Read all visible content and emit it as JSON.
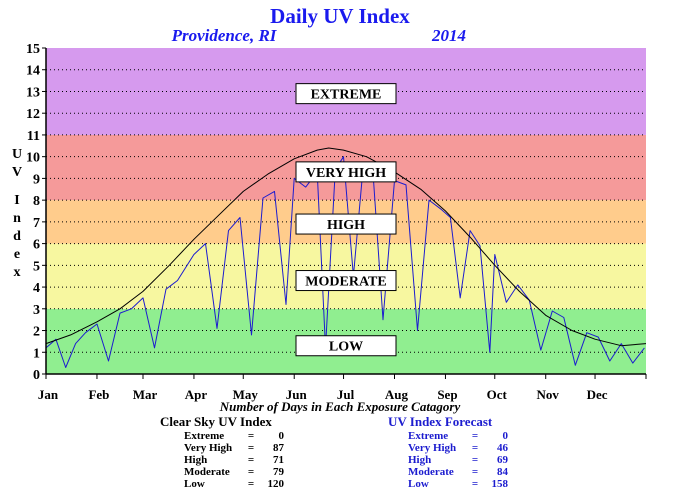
{
  "chart_data": {
    "type": "line",
    "title": "Daily UV Index",
    "location": "Providence, RI",
    "year": "2014",
    "ylabel": "UV Index",
    "ylim": [
      0,
      15
    ],
    "yticks": [
      "0",
      "1",
      "2",
      "3",
      "4",
      "5",
      "6",
      "7",
      "8",
      "9",
      "10",
      "11",
      "12",
      "13",
      "14",
      "15"
    ],
    "xlim": [
      0,
      365
    ],
    "months": [
      "Jan",
      "Feb",
      "Mar",
      "Apr",
      "May",
      "Jun",
      "Jul",
      "Aug",
      "Sep",
      "Oct",
      "Nov",
      "Dec"
    ],
    "month_starts": [
      0,
      31,
      59,
      90,
      120,
      151,
      181,
      212,
      243,
      273,
      304,
      334
    ],
    "grid": true,
    "bands": [
      {
        "label": "LOW",
        "from": 0,
        "to": 3,
        "color": "#90ee90"
      },
      {
        "label": "MODERATE",
        "from": 3,
        "to": 6,
        "color": "#f7f7a0"
      },
      {
        "label": "HIGH",
        "from": 6,
        "to": 8,
        "color": "#ffcc8c"
      },
      {
        "label": "VERY HIGH",
        "from": 8,
        "to": 11,
        "color": "#f59a9a"
      },
      {
        "label": "EXTREME",
        "from": 11,
        "to": 15,
        "color": "#d69aee"
      }
    ],
    "band_label_values": {
      "LOW": 1.3,
      "MODERATE": 4.3,
      "HIGH": 6.9,
      "VERY HIGH": 9.3,
      "EXTREME": 12.9
    },
    "clear_sky_series": {
      "name": "Clear Sky UV Index",
      "color": "#000000",
      "x": [
        0,
        15,
        31,
        45,
        59,
        75,
        90,
        105,
        120,
        135,
        151,
        165,
        172,
        181,
        195,
        212,
        228,
        243,
        258,
        273,
        288,
        304,
        320,
        334,
        350,
        365
      ],
      "y": [
        1.4,
        1.8,
        2.4,
        3.0,
        3.8,
        5.0,
        6.2,
        7.3,
        8.4,
        9.2,
        9.9,
        10.3,
        10.4,
        10.3,
        10.0,
        9.3,
        8.5,
        7.5,
        6.3,
        5.0,
        3.8,
        2.7,
        2.0,
        1.6,
        1.3,
        1.4
      ]
    },
    "forecast_series": {
      "name": "UV Index Forecast",
      "color": "#1c1ccf",
      "x": [
        0,
        6,
        12,
        18,
        24,
        31,
        38,
        45,
        52,
        59,
        66,
        73,
        80,
        90,
        97,
        104,
        111,
        118,
        125,
        132,
        139,
        146,
        151,
        158,
        165,
        170,
        176,
        181,
        187,
        193,
        199,
        205,
        212,
        219,
        226,
        233,
        240,
        246,
        252,
        258,
        264,
        270,
        273,
        280,
        287,
        294,
        301,
        308,
        315,
        322,
        329,
        336,
        343,
        350,
        357,
        364
      ],
      "y": [
        1.2,
        1.6,
        0.3,
        1.4,
        1.9,
        2.3,
        0.6,
        2.8,
        3.0,
        3.5,
        1.2,
        3.9,
        4.3,
        5.5,
        6.0,
        2.1,
        6.6,
        7.2,
        1.8,
        8.1,
        8.4,
        3.2,
        9.0,
        8.6,
        9.3,
        1.2,
        9.4,
        10.0,
        4.5,
        9.6,
        9.2,
        2.5,
        8.9,
        8.7,
        2.0,
        8.0,
        7.6,
        7.2,
        3.5,
        6.6,
        5.9,
        1.0,
        5.5,
        3.3,
        4.1,
        3.4,
        1.1,
        2.9,
        2.6,
        0.4,
        1.9,
        1.7,
        0.6,
        1.4,
        0.5,
        1.2
      ]
    }
  },
  "legend_caption": "Number of Days in Each Exposure Catagory",
  "clear_sky_stats": {
    "header": "Clear Sky UV Index",
    "rows": [
      {
        "cat": "Extreme",
        "eq": "=",
        "val": "0"
      },
      {
        "cat": "Very High",
        "eq": "=",
        "val": "87"
      },
      {
        "cat": "High",
        "eq": "=",
        "val": "71"
      },
      {
        "cat": "Moderate",
        "eq": "=",
        "val": "79"
      },
      {
        "cat": "Low",
        "eq": "=",
        "val": "120"
      }
    ]
  },
  "forecast_stats": {
    "header": "UV Index Forecast",
    "rows": [
      {
        "cat": "Extreme",
        "eq": "=",
        "val": "0"
      },
      {
        "cat": "Very High",
        "eq": "=",
        "val": "46"
      },
      {
        "cat": "High",
        "eq": "=",
        "val": "69"
      },
      {
        "cat": "Moderate",
        "eq": "=",
        "val": "84"
      },
      {
        "cat": "Low",
        "eq": "=",
        "val": "158"
      }
    ]
  }
}
